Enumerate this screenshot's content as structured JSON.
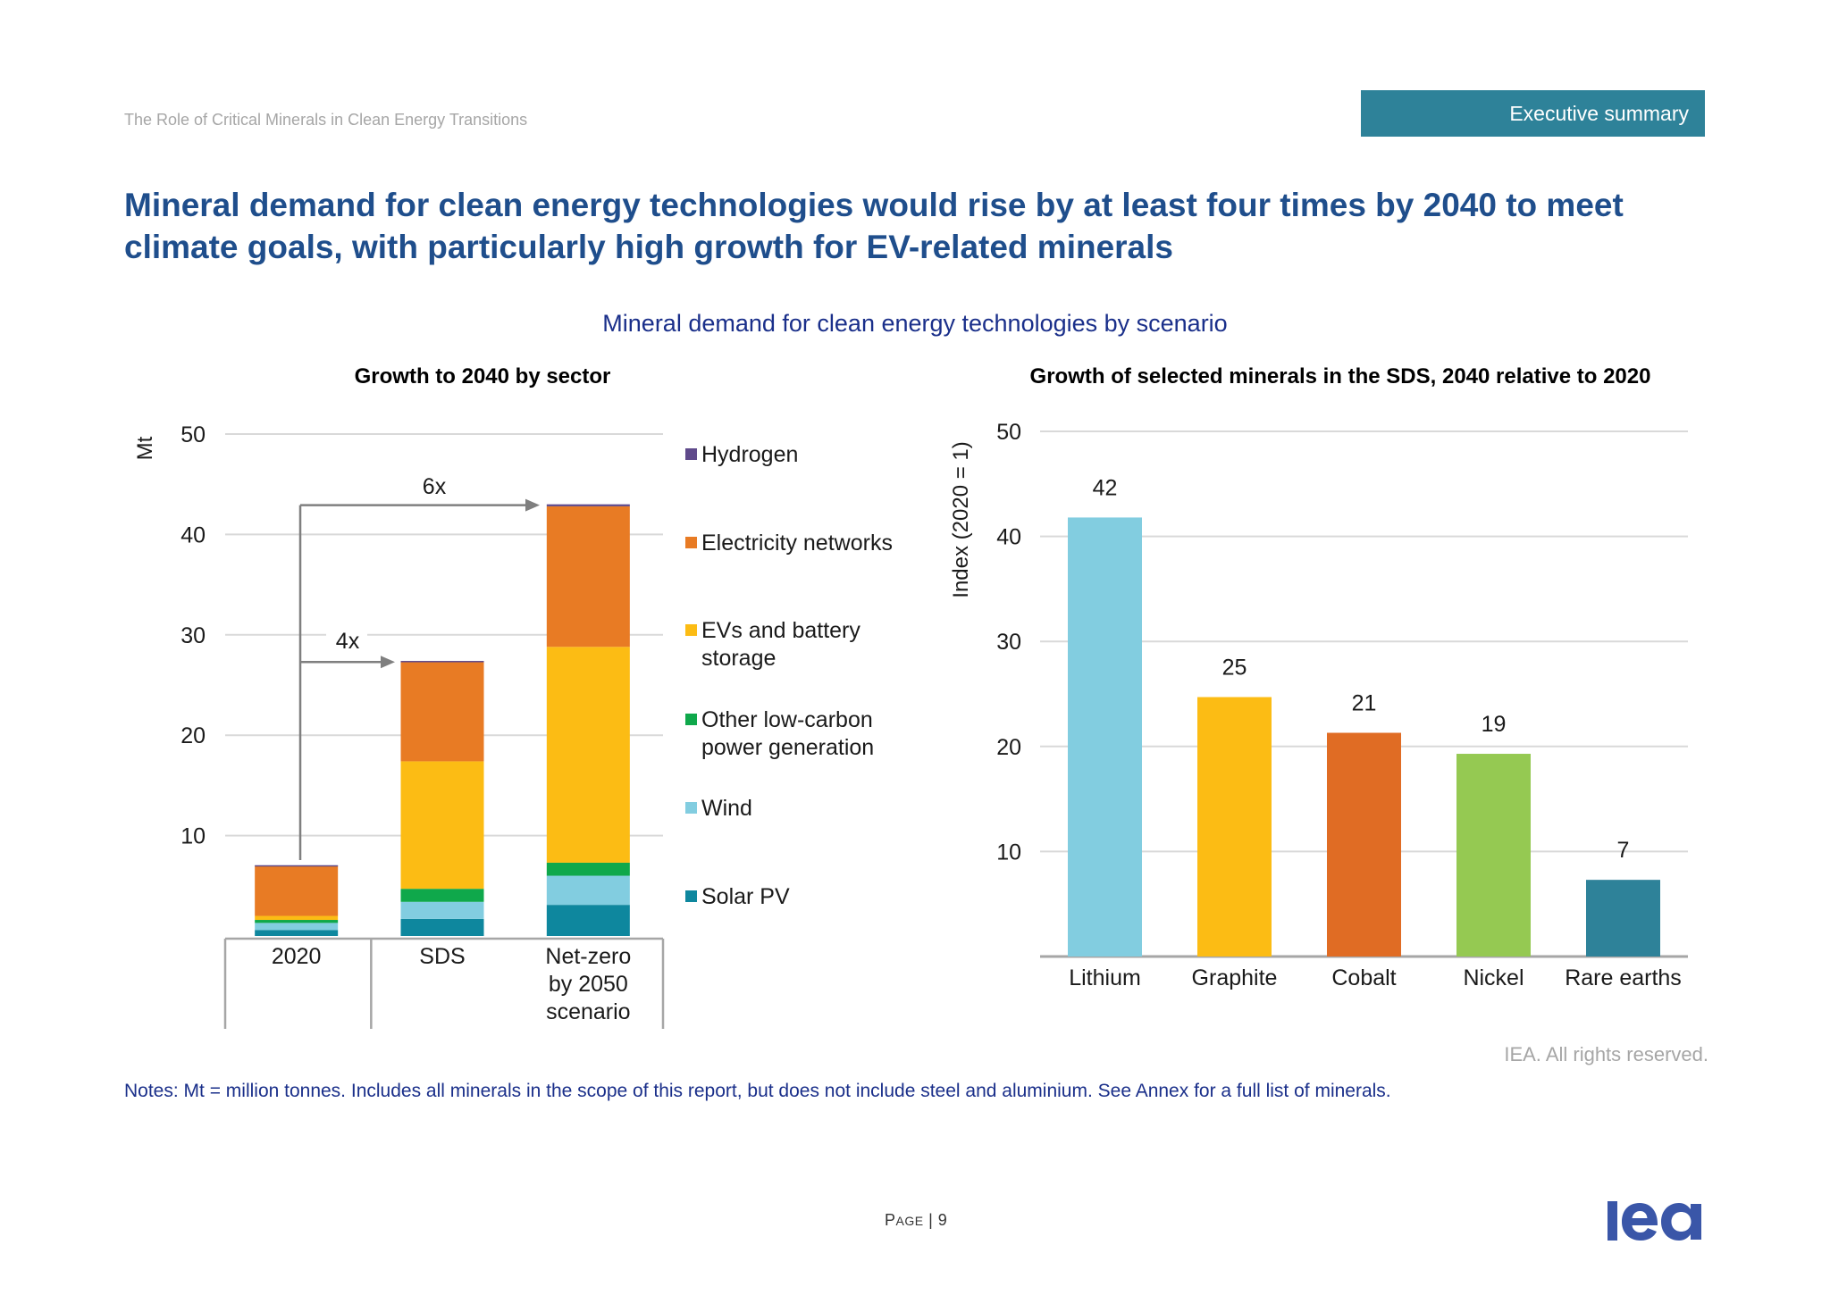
{
  "header": {
    "doc_title": "The Role of Critical Minerals in Clean Energy Transitions",
    "section_tab": "Executive summary"
  },
  "headline": "Mineral demand for clean energy technologies would rise by at least four times by 2040 to meet climate goals, with particularly high growth for EV-related minerals",
  "figure_title": "Mineral demand for clean energy technologies by scenario",
  "footer": {
    "rights": "IEA. All rights reserved.",
    "notes": "Notes: Mt = million tonnes. Includes all minerals in the scope of this report, but does not include steel and aluminium. See Annex for a full list of minerals.",
    "page_prefix_first": "P",
    "page_prefix_rest": "AGE",
    "page_sep": " | ",
    "page_number": "9",
    "logo_text": "iea"
  },
  "colors": {
    "accent": "#2e8299",
    "headline": "#1f4e8c",
    "figure_title": "#1a2f8a",
    "grid": "#d9d9d9",
    "arrow": "#7f7f7f",
    "logo": "#3a56a8"
  },
  "chart_data": [
    {
      "type": "bar",
      "stacked": true,
      "title": "Growth to 2040 by sector",
      "xlabel": "",
      "ylabel": "Mt",
      "ylim": [
        0,
        50
      ],
      "yticks": [
        10,
        20,
        30,
        40,
        50
      ],
      "grid": true,
      "legend_position": "right",
      "categories": [
        "2020",
        "SDS",
        "Net-zero by 2050 scenario"
      ],
      "category_lines": [
        [
          "2020"
        ],
        [
          "SDS"
        ],
        [
          "Net-zero",
          "by 2050",
          "scenario"
        ]
      ],
      "series": [
        {
          "name": "Solar PV",
          "color": "#0e879e",
          "values": [
            0.6,
            1.7,
            3.1
          ]
        },
        {
          "name": "Wind",
          "color": "#82cde0",
          "values": [
            0.7,
            1.7,
            2.9
          ]
        },
        {
          "name": "Other low-carbon power generation",
          "color": "#0fa84b",
          "values": [
            0.3,
            1.3,
            1.3
          ]
        },
        {
          "name": "EVs and battery storage",
          "color": "#fcbc14",
          "values": [
            0.4,
            12.7,
            21.5
          ]
        },
        {
          "name": "Electricity networks",
          "color": "#e87b24",
          "values": [
            5.0,
            9.9,
            14.0
          ]
        },
        {
          "name": "Hydrogen",
          "color": "#5f4a8b",
          "values": [
            0.05,
            0.1,
            0.2
          ]
        }
      ],
      "legend": [
        {
          "name": "Hydrogen",
          "lines": [
            "Hydrogen"
          ],
          "color": "#5f4a8b"
        },
        {
          "name": "Electricity networks",
          "lines": [
            "Electricity networks"
          ],
          "color": "#e87b24"
        },
        {
          "name": "EVs and battery storage",
          "lines": [
            "EVs and battery",
            "storage"
          ],
          "color": "#fcbc14"
        },
        {
          "name": "Other low-carbon power generation",
          "lines": [
            "Other low-carbon",
            "power generation"
          ],
          "color": "#0fa84b"
        },
        {
          "name": "Wind",
          "lines": [
            "Wind"
          ],
          "color": "#82cde0"
        },
        {
          "name": "Solar PV",
          "lines": [
            "Solar PV"
          ],
          "color": "#0e879e"
        }
      ],
      "annotations": [
        {
          "label": "4x",
          "from": "2020",
          "to": "SDS"
        },
        {
          "label": "6x",
          "from": "2020",
          "to": "Net-zero by 2050 scenario"
        }
      ]
    },
    {
      "type": "bar",
      "title": "Growth of selected minerals in the SDS, 2040 relative to 2020",
      "xlabel": "",
      "ylabel": "Index (2020 = 1)",
      "ylim": [
        0,
        50
      ],
      "yticks": [
        10,
        20,
        30,
        40,
        50
      ],
      "grid": true,
      "categories": [
        "Lithium",
        "Graphite",
        "Cobalt",
        "Nickel",
        "Rare earths"
      ],
      "values": [
        41.8,
        24.7,
        21.3,
        19.3,
        7.3
      ],
      "data_labels": [
        "42",
        "25",
        "21",
        "19",
        "7"
      ],
      "colors": [
        "#82cde0",
        "#fcbc14",
        "#e06c24",
        "#95c952",
        "#2e8299"
      ]
    }
  ]
}
